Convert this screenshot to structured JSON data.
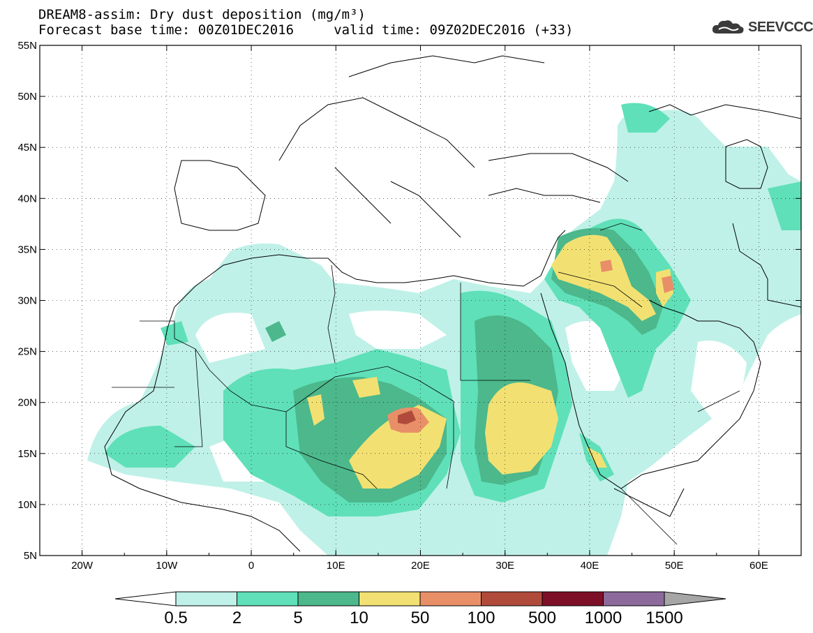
{
  "header": {
    "title_line1": "DREAM8-assim: Dry dust deposition (mg/m³)",
    "title_line2": "Forecast base time: 00Z01DEC2016     valid time: 09Z02DEC2016 (+33)"
  },
  "logo": {
    "text": "SEEVCCC",
    "icon": "cloud-icon"
  },
  "map": {
    "lon_range": [
      -25,
      65
    ],
    "lat_range": [
      5,
      55
    ],
    "lon_ticks": [
      {
        "value": -20,
        "label": "20W"
      },
      {
        "value": -10,
        "label": "10W"
      },
      {
        "value": 0,
        "label": "0"
      },
      {
        "value": 10,
        "label": "10E"
      },
      {
        "value": 20,
        "label": "20E"
      },
      {
        "value": 30,
        "label": "30E"
      },
      {
        "value": 40,
        "label": "40E"
      },
      {
        "value": 50,
        "label": "50E"
      },
      {
        "value": 60,
        "label": "60E"
      }
    ],
    "lat_ticks": [
      {
        "value": 5,
        "label": "5N"
      },
      {
        "value": 10,
        "label": "10N"
      },
      {
        "value": 15,
        "label": "15N"
      },
      {
        "value": 20,
        "label": "20N"
      },
      {
        "value": 25,
        "label": "25N"
      },
      {
        "value": 30,
        "label": "30N"
      },
      {
        "value": 35,
        "label": "35N"
      },
      {
        "value": 40,
        "label": "40N"
      },
      {
        "value": 45,
        "label": "45N"
      },
      {
        "value": 50,
        "label": "50N"
      },
      {
        "value": 55,
        "label": "55N"
      }
    ]
  },
  "legend": {
    "bins": [
      {
        "label": "0.5",
        "color": "#bff1e8"
      },
      {
        "label": "2",
        "color": "#5fe0b8"
      },
      {
        "label": "5",
        "color": "#4cb88c"
      },
      {
        "label": "10",
        "color": "#f2e172"
      },
      {
        "label": "50",
        "color": "#e98f68"
      },
      {
        "label": "100",
        "color": "#b04b3b"
      },
      {
        "label": "500",
        "color": "#7d1028"
      },
      {
        "label": "1000",
        "color": "#8c6a9c"
      },
      {
        "label": "1500",
        "color": "#a6a6a6"
      }
    ]
  }
}
